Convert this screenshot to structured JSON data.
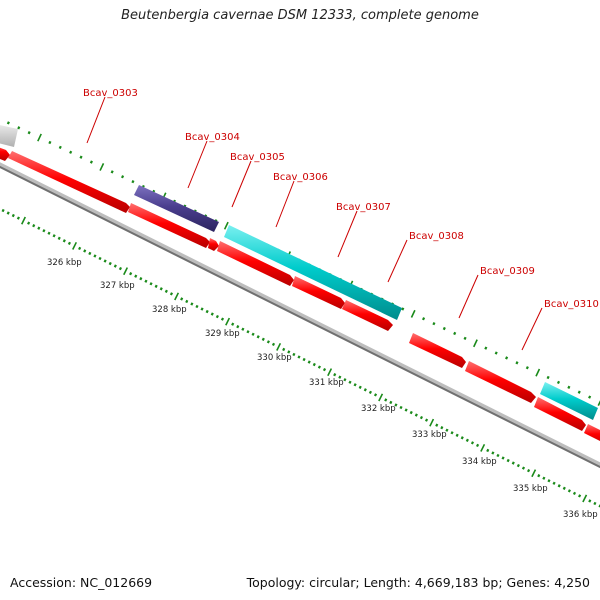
{
  "title": "Beutenbergia cavernae DSM 12333, complete genome",
  "accession_text": "Accession: NC_012669",
  "summary_text": "Topology: circular; Length: 4,669,183 bp; Genes: 4,250",
  "colors": {
    "forward_gene": "#ff0000",
    "reverse_gene": "#ff0000",
    "cyan_gene": "#00c8c8",
    "purple_gene": "#4b3f8f",
    "grey_gene": "#c8c8c8",
    "backbone": "#7a7a7a",
    "tick": "#1a8a1a",
    "label": "#cc0000"
  },
  "gene_labels": [
    "Bcav_0303",
    "Bcav_0304",
    "Bcav_0305",
    "Bcav_0306",
    "Bcav_0307",
    "Bcav_0308",
    "Bcav_0309",
    "Bcav_0310"
  ],
  "kbp_labels": [
    "326 kbp",
    "327 kbp",
    "328 kbp",
    "329 kbp",
    "330 kbp",
    "331 kbp",
    "332 kbp",
    "333 kbp",
    "334 kbp",
    "335 kbp",
    "336 kbp"
  ]
}
